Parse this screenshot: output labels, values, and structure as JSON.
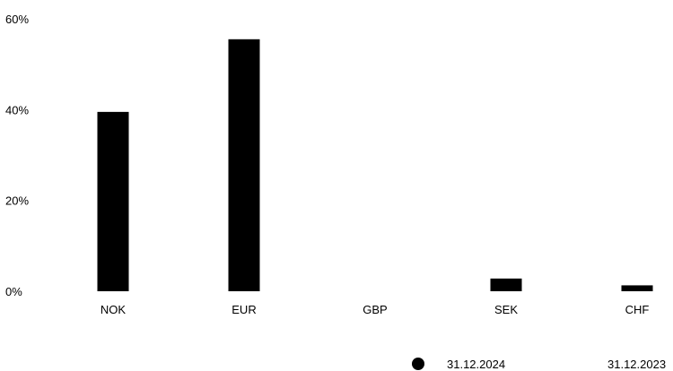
{
  "chart_data": {
    "type": "bar",
    "categories": [
      "NOK",
      "EUR",
      "GBP",
      "SEK",
      "CHF"
    ],
    "series": [
      {
        "name": "31.12.2024",
        "values": [
          39.5,
          55.5,
          0,
          2.8,
          1.3
        ],
        "color": "#000000"
      },
      {
        "name": "31.12.2023",
        "values": [
          null,
          null,
          null,
          null,
          null
        ],
        "color": "#000000"
      }
    ],
    "y_ticks": [
      "0%",
      "20%",
      "40%",
      "60%"
    ],
    "ylim": [
      0,
      60
    ],
    "grid": false,
    "legend_position": "bottom-right"
  }
}
